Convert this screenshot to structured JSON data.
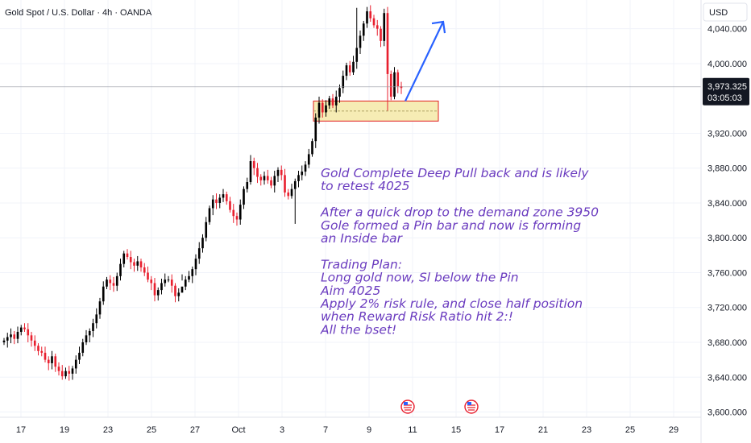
{
  "header": {
    "title": "Gold Spot / U.S. Dollar · 4h · OANDA",
    "currency": "USD"
  },
  "price_label": {
    "price": "3,973.325",
    "countdown": "03:05:03"
  },
  "colors": {
    "up": "#089981",
    "down": "#f23645",
    "candle_up_fill": "#000000",
    "candle_down_fill": "#e8202f",
    "arrow": "#2962ff",
    "zone_fill": "#f6ecb4",
    "zone_border": "#e02020",
    "note": "#6a3bbf",
    "price_label_bg": "#131722"
  },
  "note_lines": [
    "Gold Complete Deep Pull back and is likely",
    "to retest 4025",
    "",
    "After a quick drop to the demand zone 3950",
    "Gole formed a Pin bar and now is forming",
    "an Inside bar",
    "",
    "Trading Plan:",
    "Long gold now, Sl below the Pin",
    "Aim 4025",
    "Apply 2% risk rule,  and close half position",
    "when Reward Risk Ratio hit 2:!",
    "All the bset!"
  ],
  "chart_data": {
    "type": "candlestick",
    "symbol": "Gold Spot / U.S. Dollar",
    "timeframe": "4h",
    "source": "OANDA",
    "currency": "USD",
    "ylim": [
      3594,
      4073
    ],
    "y_ticks": [
      3600,
      3640,
      3680,
      3720,
      3760,
      3800,
      3840,
      3880,
      3920,
      4000,
      4040
    ],
    "y_tick_labels": [
      "3,600.000",
      "3,640.000",
      "3,680.000",
      "3,720.000",
      "3,760.000",
      "3,800.000",
      "3,840.000",
      "3,880.000",
      "3,920.000",
      "4,000.000",
      "4,040.000"
    ],
    "x_tick_labels": [
      "17",
      "19",
      "23",
      "25",
      "27",
      "Oct",
      "3",
      "7",
      "9",
      "11",
      "15",
      "17",
      "21",
      "23",
      "25",
      "29"
    ],
    "last_price": 3973.325,
    "closes": [
      3682,
      3686,
      3689,
      3684,
      3692,
      3697,
      3695,
      3688,
      3682,
      3676,
      3670,
      3668,
      3660,
      3656,
      3664,
      3652,
      3647,
      3641,
      3647,
      3644,
      3650,
      3660,
      3668,
      3680,
      3688,
      3693,
      3702,
      3712,
      3727,
      3744,
      3752,
      3748,
      3745,
      3756,
      3770,
      3782,
      3778,
      3772,
      3768,
      3773,
      3766,
      3760,
      3752,
      3748,
      3734,
      3740,
      3748,
      3752,
      3752,
      3745,
      3733,
      3737,
      3744,
      3752,
      3756,
      3764,
      3776,
      3788,
      3800,
      3818,
      3834,
      3844,
      3840,
      3846,
      3850,
      3842,
      3832,
      3825,
      3821,
      3838,
      3856,
      3864,
      3888,
      3880,
      3870,
      3866,
      3871,
      3866,
      3860,
      3871,
      3878,
      3872,
      3852,
      3848,
      3856,
      3865,
      3872,
      3876,
      3884,
      3896,
      3911,
      3938,
      3955,
      3944,
      3952,
      3960,
      3952,
      3962,
      3972,
      3986,
      3998,
      3990,
      4002,
      4018,
      4032,
      4046,
      4060,
      4052,
      4044,
      4040,
      4026,
      4058,
      3988,
      3962,
      3990,
      3974,
      3972
    ],
    "annotation": {
      "demand_zone": [
        3934,
        3957
      ],
      "arrow_from": 3957,
      "arrow_to": 4048
    }
  }
}
